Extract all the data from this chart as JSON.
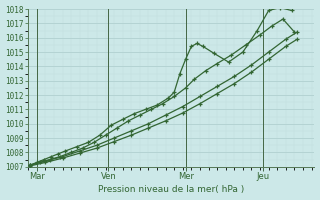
{
  "background_color": "#cce8e8",
  "plot_bg": "#cce8e8",
  "grid_color_major": "#aacccc",
  "grid_color_minor": "#bbdddd",
  "line_color": "#336633",
  "xlabel": "Pression niveau de la mer( hPa )",
  "ylim": [
    1007,
    1018
  ],
  "xlim": [
    0,
    10
  ],
  "yticks": [
    1007,
    1008,
    1009,
    1010,
    1011,
    1012,
    1013,
    1014,
    1015,
    1016,
    1017,
    1018
  ],
  "day_labels": [
    "Mar",
    "Ven",
    "Mer",
    "Jeu"
  ],
  "day_positions": [
    0.3,
    2.8,
    5.5,
    8.2
  ],
  "vline_positions": [
    0.3,
    2.8,
    5.5,
    8.2
  ],
  "series": [
    {
      "x": [
        0.05,
        0.3,
        0.55,
        0.8,
        1.05,
        1.3,
        1.7,
        2.1,
        2.5,
        2.9,
        3.3,
        3.7,
        4.1,
        4.5,
        4.9,
        5.1,
        5.3,
        5.5,
        5.7,
        5.9,
        6.1,
        6.5,
        7.0,
        7.5,
        8.0,
        8.4,
        8.8,
        9.2
      ],
      "y": [
        1007.1,
        1007.3,
        1007.5,
        1007.7,
        1007.9,
        1008.1,
        1008.4,
        1008.7,
        1009.2,
        1009.9,
        1010.3,
        1010.7,
        1011.0,
        1011.3,
        1011.8,
        1012.2,
        1013.5,
        1014.5,
        1015.4,
        1015.6,
        1015.4,
        1014.9,
        1014.3,
        1015.0,
        1016.5,
        1017.9,
        1018.1,
        1017.9
      ]
    },
    {
      "x": [
        0.05,
        0.4,
        0.75,
        1.1,
        1.5,
        1.9,
        2.3,
        2.7,
        3.1,
        3.5,
        3.9,
        4.3,
        4.7,
        5.1,
        5.5,
        5.8,
        6.2,
        6.6,
        7.1,
        7.6,
        8.1,
        8.5,
        8.9,
        9.3
      ],
      "y": [
        1007.1,
        1007.3,
        1007.5,
        1007.7,
        1008.0,
        1008.3,
        1008.7,
        1009.2,
        1009.7,
        1010.2,
        1010.6,
        1011.0,
        1011.4,
        1011.9,
        1012.5,
        1013.1,
        1013.7,
        1014.2,
        1014.8,
        1015.5,
        1016.2,
        1016.8,
        1017.3,
        1016.4
      ]
    },
    {
      "x": [
        0.05,
        0.6,
        1.2,
        1.8,
        2.4,
        3.0,
        3.6,
        4.2,
        4.8,
        5.4,
        6.0,
        6.6,
        7.2,
        7.8,
        8.4,
        9.0,
        9.4
      ],
      "y": [
        1007.1,
        1007.4,
        1007.7,
        1008.1,
        1008.5,
        1009.0,
        1009.5,
        1010.0,
        1010.6,
        1011.2,
        1011.9,
        1012.6,
        1013.3,
        1014.1,
        1015.0,
        1015.9,
        1016.4
      ]
    },
    {
      "x": [
        0.05,
        0.6,
        1.2,
        1.8,
        2.4,
        3.0,
        3.6,
        4.2,
        4.8,
        5.4,
        6.0,
        6.6,
        7.2,
        7.8,
        8.4,
        9.0,
        9.4
      ],
      "y": [
        1007.05,
        1007.3,
        1007.6,
        1007.95,
        1008.3,
        1008.75,
        1009.2,
        1009.7,
        1010.2,
        1010.75,
        1011.4,
        1012.1,
        1012.8,
        1013.6,
        1014.5,
        1015.4,
        1015.9
      ]
    }
  ]
}
